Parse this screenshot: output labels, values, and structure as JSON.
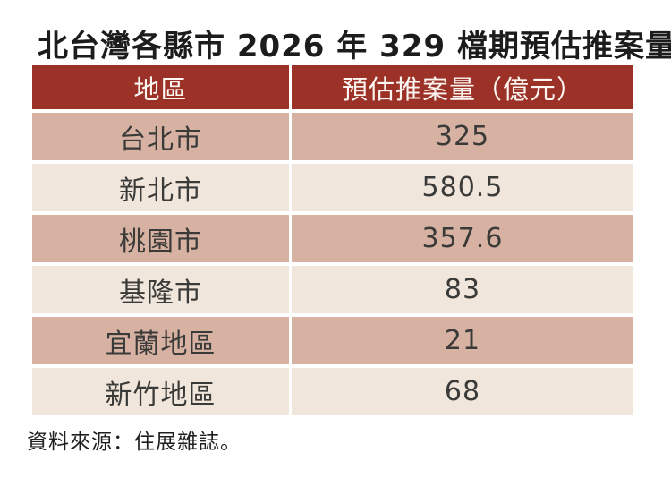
{
  "page": {
    "title": "北台灣各縣市 2026 年 329 檔期預估推案量",
    "source_note": "資料來源：住展雜誌。"
  },
  "table": {
    "headers": [
      "地區",
      "預估推案量（億元）"
    ],
    "rows": [
      {
        "region": "台北市",
        "value": "325"
      },
      {
        "region": "新北市",
        "value": "580.5"
      },
      {
        "region": "桃園市",
        "value": "357.6"
      },
      {
        "region": "基隆市",
        "value": "83"
      },
      {
        "region": "宜蘭地區",
        "value": "21"
      },
      {
        "region": "新竹地區",
        "value": "68"
      }
    ]
  },
  "colors": {
    "header_bg": "#9c3128",
    "header_text": "#fcf6f1",
    "row_tan_bg": "#d7b2a3",
    "row_cream_bg": "#f1e6dc",
    "cell_text": "#3a3a38",
    "title_text": "#1c1c1c"
  },
  "chart_data": {
    "type": "table",
    "title": "北台灣各縣市 2026 年 329 檔期預估推案量",
    "columns": [
      "地區",
      "預估推案量（億元）"
    ],
    "categories": [
      "台北市",
      "新北市",
      "桃園市",
      "基隆市",
      "宜蘭地區",
      "新竹地區"
    ],
    "values": [
      325,
      580.5,
      357.6,
      83,
      21,
      68
    ],
    "unit": "億元",
    "source": "資料來源：住展雜誌。",
    "layout_hints": {
      "header_style": "dark-red band, white text",
      "row_style": "alternating tan and cream bands separated by white gaps",
      "alignment": "all cells centered"
    }
  }
}
